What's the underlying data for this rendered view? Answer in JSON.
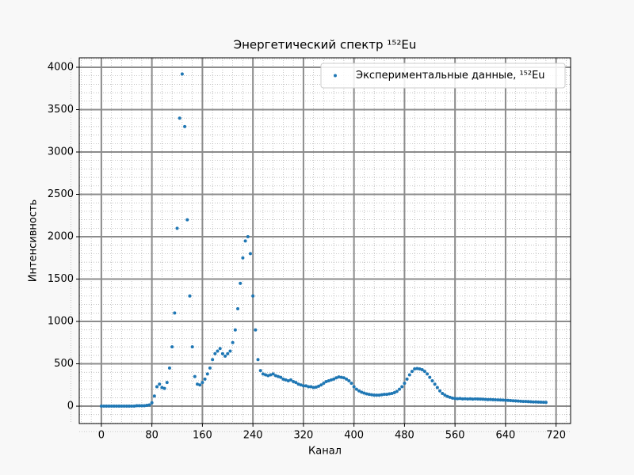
{
  "chart_data": {
    "type": "scatter",
    "title": "Энергетический спектр ¹⁵²Eu",
    "xlabel": "Канал",
    "ylabel": "Интенсивность",
    "x": [
      0,
      4,
      8,
      12,
      16,
      20,
      24,
      28,
      32,
      36,
      40,
      44,
      48,
      52,
      56,
      60,
      64,
      68,
      72,
      76,
      80,
      84,
      88,
      92,
      96,
      100,
      104,
      108,
      112,
      116,
      120,
      124,
      128,
      132,
      136,
      140,
      144,
      148,
      152,
      156,
      160,
      164,
      168,
      172,
      176,
      180,
      184,
      188,
      192,
      196,
      200,
      204,
      208,
      212,
      216,
      220,
      224,
      228,
      232,
      236,
      240,
      244,
      248,
      252,
      256,
      260,
      264,
      268,
      272,
      276,
      280,
      284,
      288,
      292,
      296,
      300,
      304,
      308,
      312,
      316,
      320,
      324,
      328,
      332,
      336,
      340,
      344,
      348,
      352,
      356,
      360,
      364,
      368,
      372,
      376,
      380,
      384,
      388,
      392,
      396,
      400,
      404,
      408,
      412,
      416,
      420,
      424,
      428,
      432,
      436,
      440,
      444,
      448,
      452,
      456,
      460,
      464,
      468,
      472,
      476,
      480,
      484,
      488,
      492,
      496,
      500,
      504,
      508,
      512,
      516,
      520,
      524,
      528,
      532,
      536,
      540,
      544,
      548,
      552,
      556,
      560,
      564,
      568,
      572,
      576,
      580,
      584,
      588,
      592,
      596,
      600,
      604,
      608,
      612,
      616,
      620,
      624,
      628,
      632,
      636,
      640,
      644,
      648,
      652,
      656,
      660,
      664,
      668,
      672,
      676,
      680,
      684,
      688,
      692,
      696,
      700,
      704
    ],
    "series": [
      {
        "name": "Экспериментальные данные, ¹⁵²Eu",
        "color": "#1f77b4",
        "values": [
          0,
          0,
          0,
          0,
          0,
          0,
          0,
          0,
          0,
          0,
          0,
          0,
          0,
          0,
          5,
          5,
          5,
          5,
          10,
          15,
          40,
          120,
          230,
          260,
          220,
          210,
          280,
          450,
          700,
          1100,
          2100,
          3400,
          3920,
          3300,
          2200,
          1300,
          700,
          350,
          260,
          250,
          280,
          320,
          380,
          450,
          550,
          620,
          650,
          680,
          620,
          590,
          620,
          650,
          750,
          900,
          1150,
          1450,
          1750,
          1950,
          2000,
          1800,
          1300,
          900,
          550,
          420,
          380,
          370,
          360,
          370,
          380,
          360,
          350,
          340,
          320,
          310,
          300,
          310,
          290,
          280,
          260,
          250,
          240,
          240,
          230,
          230,
          220,
          225,
          235,
          250,
          270,
          290,
          300,
          310,
          320,
          335,
          345,
          340,
          335,
          320,
          300,
          270,
          230,
          200,
          180,
          165,
          155,
          145,
          140,
          135,
          130,
          130,
          130,
          135,
          140,
          140,
          145,
          150,
          160,
          175,
          200,
          230,
          270,
          320,
          370,
          410,
          440,
          445,
          440,
          430,
          410,
          380,
          340,
          300,
          260,
          220,
          180,
          150,
          130,
          115,
          105,
          95,
          90,
          88,
          90,
          86,
          88,
          85,
          87,
          84,
          86,
          85,
          83,
          82,
          80,
          78,
          79,
          76,
          75,
          74,
          73,
          72,
          70,
          68,
          66,
          64,
          62,
          60,
          58,
          56,
          55,
          54,
          52,
          50,
          50,
          48,
          47,
          46,
          45
        ]
      }
    ],
    "xlim": [
      -35,
      743
    ],
    "ylim": [
      -205,
      4112
    ],
    "xticks": [
      0,
      80,
      160,
      240,
      320,
      400,
      480,
      560,
      640,
      720
    ],
    "yticks": [
      0,
      500,
      1000,
      1500,
      2000,
      2500,
      3000,
      3500,
      4000
    ],
    "grid": true,
    "minor_grid": true,
    "legend": "upper right"
  }
}
